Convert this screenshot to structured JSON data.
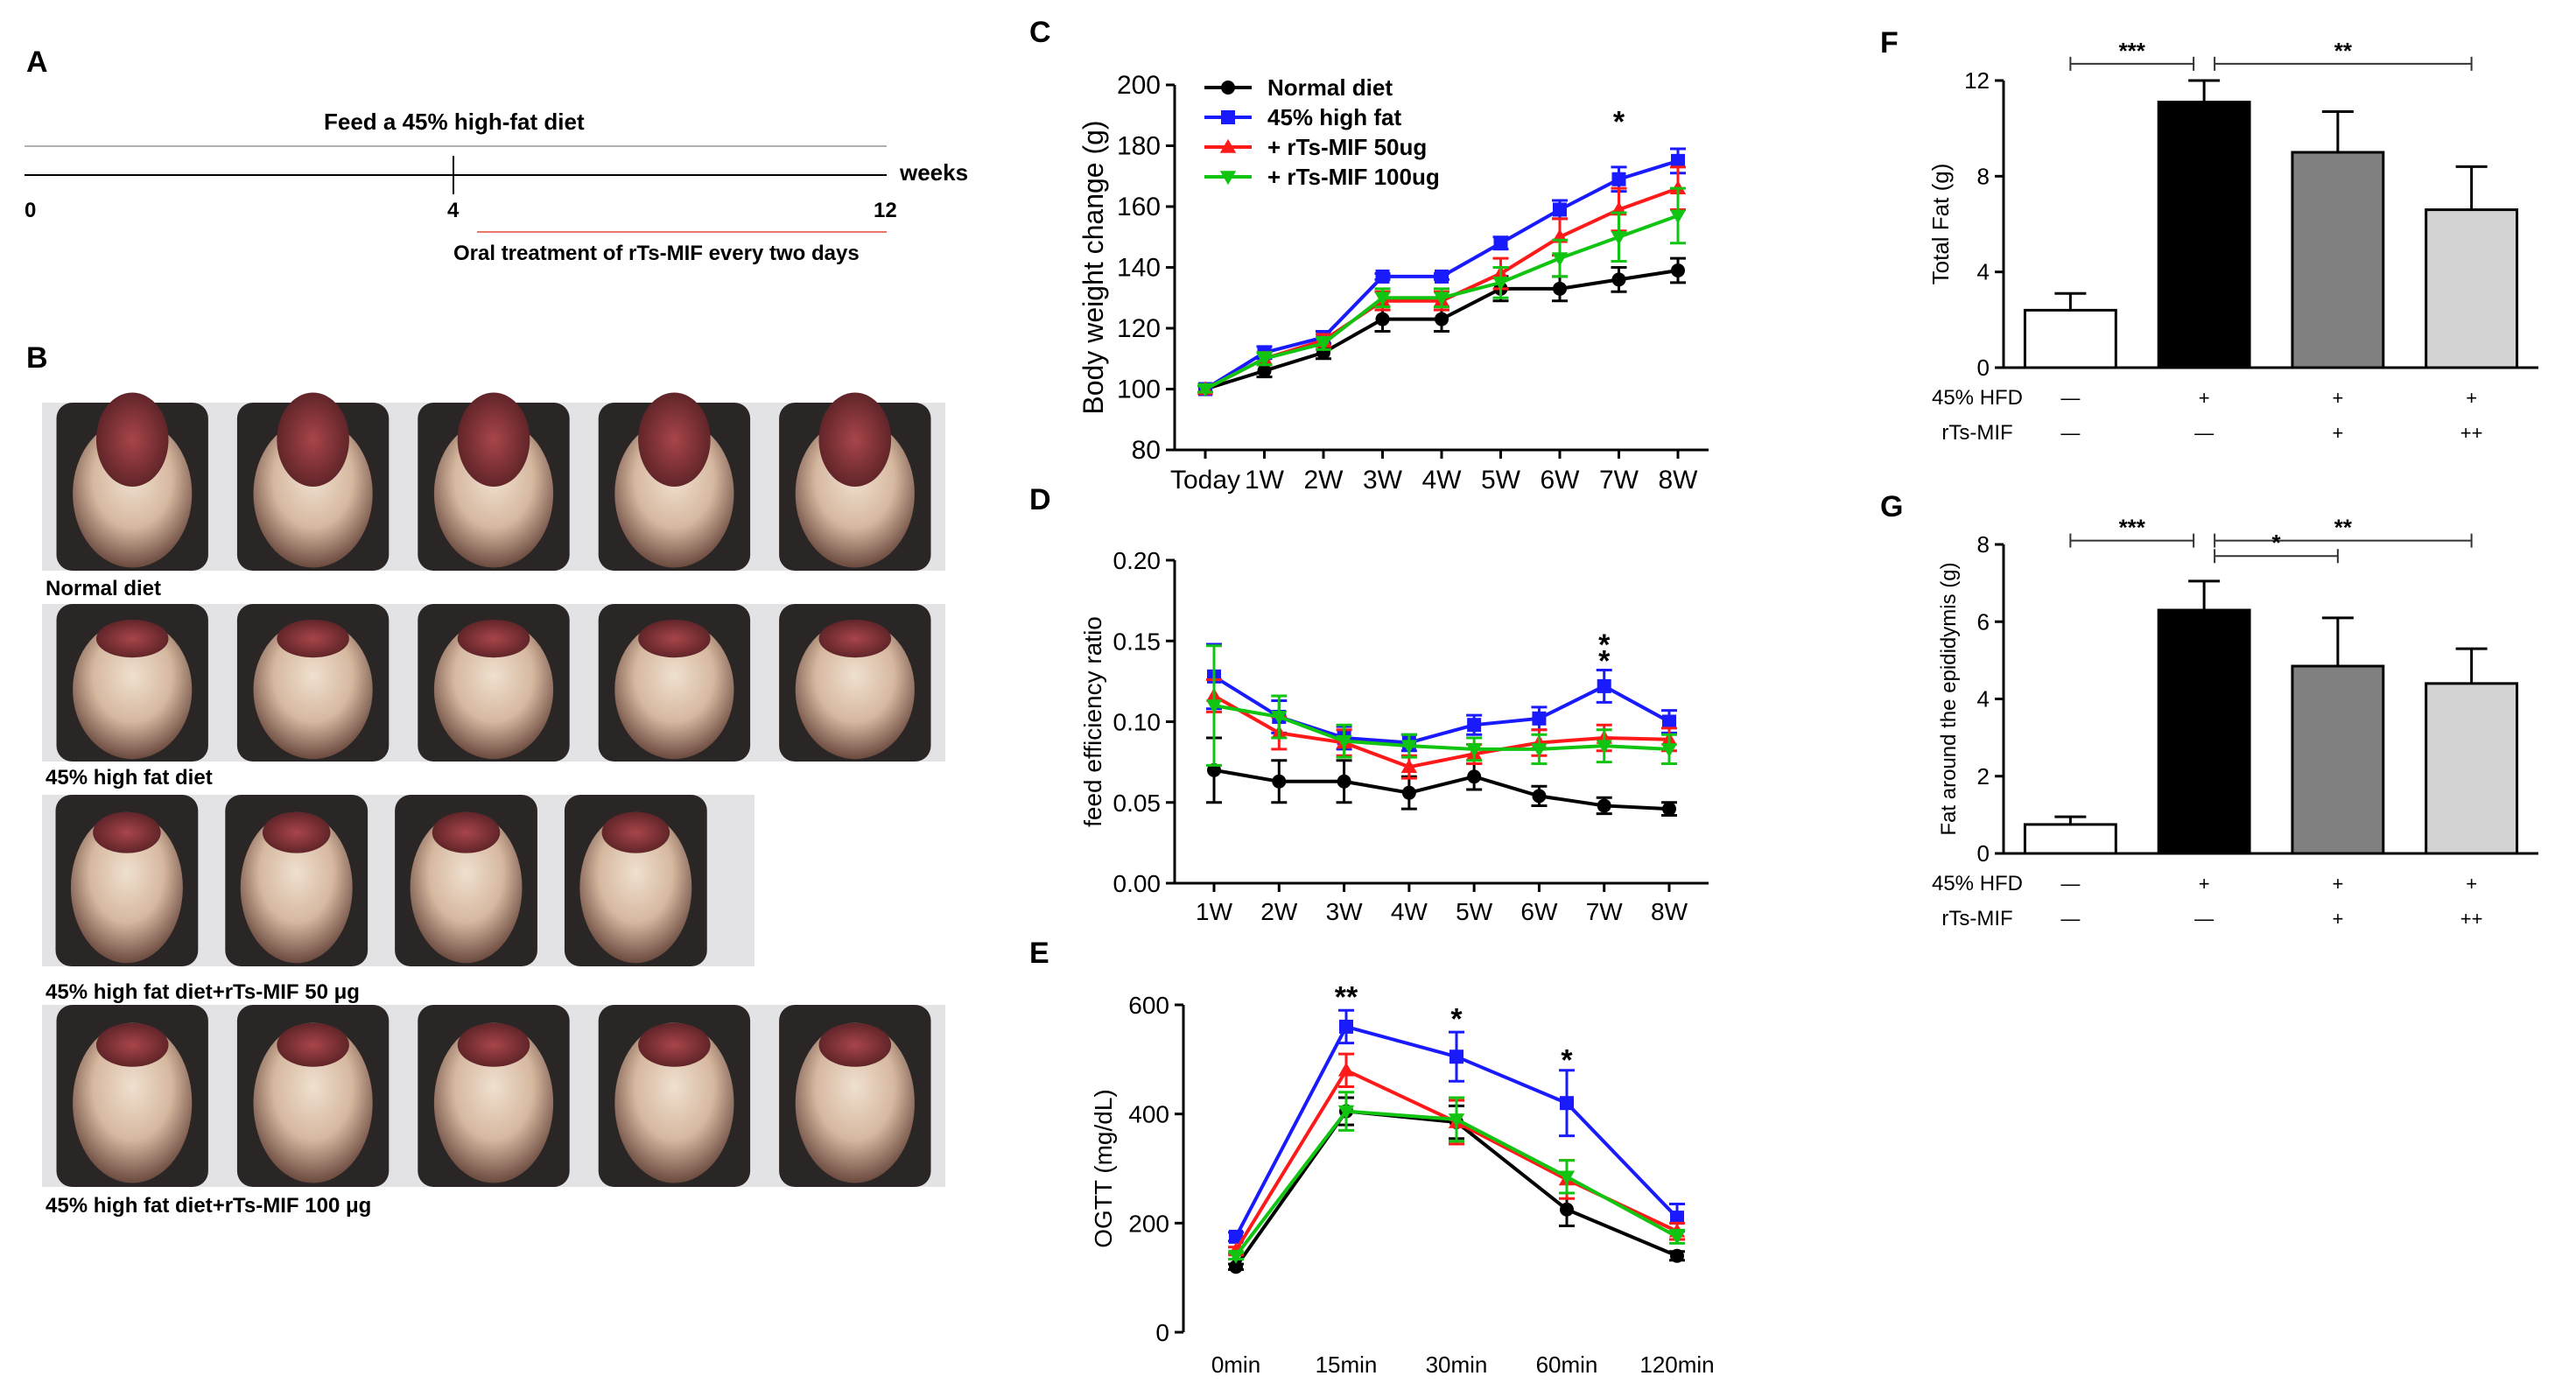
{
  "panel_labels": {
    "A": "A",
    "B": "B",
    "C": "C",
    "D": "D",
    "E": "E",
    "F": "F",
    "G": "G"
  },
  "timeline": {
    "diet_label": "Feed a 45% high-fat diet",
    "weeks_label": "weeks",
    "ticks": [
      "0",
      "4",
      "12"
    ],
    "treatment_label": "Oral treatment of rTs-MIF every two days",
    "treatment_color": "#e8766a"
  },
  "photos": {
    "rows": [
      {
        "caption": "Normal diet",
        "mice": 5
      },
      {
        "caption": "45% high fat diet",
        "mice": 5
      },
      {
        "caption": "45% high fat diet+rTs-MIF 50 μg",
        "mice": 4
      },
      {
        "caption": "45% high fat diet+rTs-MIF 100 μg",
        "mice": 5
      }
    ]
  },
  "series_style": [
    {
      "name": "Normal diet",
      "color": "#000000",
      "marker": "circle"
    },
    {
      "name": "45% high fat",
      "color": "#1a1aff",
      "marker": "square"
    },
    {
      "name": "+ rTs-MIF 50ug",
      "color": "#ff1a1a",
      "marker": "triangle-up"
    },
    {
      "name": "+ rTs-MIF 100ug",
      "color": "#11c411",
      "marker": "triangle-down"
    }
  ],
  "chart_data": [
    {
      "id": "C",
      "type": "line",
      "ylabel": "Body weight change (g)",
      "categories": [
        "Today",
        "1W",
        "2W",
        "3W",
        "4W",
        "5W",
        "6W",
        "7W",
        "8W"
      ],
      "ylim": [
        80,
        200
      ],
      "yticks": [
        80,
        100,
        120,
        140,
        160,
        180,
        200
      ],
      "series": [
        {
          "name": "Normal diet",
          "values": [
            100,
            106,
            112,
            123,
            123,
            133,
            133,
            136,
            139
          ],
          "errors": [
            1,
            2,
            2,
            4,
            4,
            4,
            4,
            4,
            4
          ]
        },
        {
          "name": "45% high fat",
          "values": [
            100,
            112,
            117,
            137,
            137,
            148,
            159,
            169,
            175
          ],
          "errors": [
            1,
            2,
            2,
            1,
            1,
            2,
            3,
            4,
            4
          ]
        },
        {
          "name": "+ rTs-MIF 50ug",
          "values": [
            100,
            110,
            116,
            129,
            129,
            138,
            150,
            159,
            166
          ],
          "errors": [
            1,
            2,
            2,
            3,
            3,
            5,
            6,
            7,
            7
          ]
        },
        {
          "name": "+ rTs-MIF 100ug",
          "values": [
            100,
            110,
            115,
            130,
            130,
            135,
            143,
            150,
            157
          ],
          "errors": [
            1,
            2,
            2,
            3,
            3,
            5,
            6,
            8,
            9
          ]
        }
      ],
      "annotations": [
        {
          "category": "7W",
          "text": "*",
          "color": "#11c411",
          "y": 188
        }
      ]
    },
    {
      "id": "D",
      "type": "line",
      "ylabel": "feed efficiency ratio",
      "categories": [
        "1W",
        "2W",
        "3W",
        "4W",
        "5W",
        "6W",
        "7W",
        "8W"
      ],
      "ylim": [
        0,
        0.2
      ],
      "yticks": [
        "0.00",
        "0.05",
        "0.10",
        "0.15",
        "0.20"
      ],
      "series": [
        {
          "name": "Normal diet",
          "values": [
            0.07,
            0.063,
            0.063,
            0.056,
            0.066,
            0.054,
            0.048,
            0.046
          ],
          "errors": [
            0.02,
            0.013,
            0.013,
            0.01,
            0.008,
            0.006,
            0.005,
            0.004
          ]
        },
        {
          "name": "45% high fat",
          "values": [
            0.128,
            0.103,
            0.09,
            0.087,
            0.098,
            0.102,
            0.122,
            0.1
          ],
          "errors": [
            0.02,
            0.01,
            0.007,
            0.005,
            0.006,
            0.007,
            0.01,
            0.007
          ]
        },
        {
          "name": "+ rTs-MIF 50ug",
          "values": [
            0.116,
            0.093,
            0.087,
            0.072,
            0.08,
            0.087,
            0.09,
            0.089
          ],
          "errors": [
            0.01,
            0.01,
            0.008,
            0.007,
            0.006,
            0.008,
            0.008,
            0.007
          ]
        },
        {
          "name": "+ rTs-MIF 100ug",
          "values": [
            0.11,
            0.103,
            0.088,
            0.085,
            0.083,
            0.083,
            0.085,
            0.083
          ],
          "errors": [
            0.037,
            0.013,
            0.01,
            0.007,
            0.007,
            0.009,
            0.01,
            0.009
          ]
        }
      ],
      "annotations": [
        {
          "category": "7W",
          "text": "*",
          "color": "#ff1a1a",
          "y": 0.148
        },
        {
          "category": "7W",
          "text": "*",
          "color": "#11c411",
          "y": 0.138
        }
      ]
    },
    {
      "id": "E",
      "type": "line",
      "ylabel": "OGTT (mg/dL)",
      "categories": [
        "0min",
        "15min",
        "30min",
        "60min",
        "120min"
      ],
      "ylim": [
        0,
        600
      ],
      "yticks": [
        0,
        200,
        400,
        600
      ],
      "series": [
        {
          "name": "Normal diet",
          "values": [
            120,
            405,
            385,
            225,
            140
          ],
          "errors": [
            5,
            25,
            30,
            30,
            8
          ]
        },
        {
          "name": "45% high fat",
          "values": [
            175,
            560,
            505,
            420,
            210
          ],
          "errors": [
            8,
            30,
            45,
            60,
            25
          ]
        },
        {
          "name": "+ rTs-MIF 50ug",
          "values": [
            150,
            480,
            385,
            280,
            185
          ],
          "errors": [
            6,
            30,
            40,
            35,
            15
          ]
        },
        {
          "name": "+ rTs-MIF 100ug",
          "values": [
            140,
            405,
            390,
            285,
            175
          ],
          "errors": [
            6,
            35,
            40,
            30,
            12
          ]
        }
      ],
      "annotations": [
        {
          "category": "15min",
          "text": "**",
          "color": "#11c411",
          "y": 615
        },
        {
          "category": "30min",
          "text": "*",
          "color": "#ff1a1a",
          "y": 575
        },
        {
          "category": "60min",
          "text": "*",
          "color": "#ff1a1a",
          "y": 500
        }
      ]
    },
    {
      "id": "F",
      "type": "bar",
      "ylabel": "Total Fat (g)",
      "ylim": [
        0,
        12
      ],
      "yticks": [
        0,
        4,
        8,
        12
      ],
      "values": [
        2.4,
        11.1,
        9.0,
        6.6
      ],
      "errors": [
        0.7,
        0.9,
        1.7,
        1.8
      ],
      "colors": [
        "#ffffff",
        "#000000",
        "#808080",
        "#d3d3d3"
      ],
      "row1_label": "45% HFD",
      "row1": [
        "—",
        "+",
        "+",
        "+"
      ],
      "row2_label": "rTs-MIF",
      "row2": [
        "—",
        "—",
        "+",
        "++"
      ],
      "significance": [
        {
          "from": 0,
          "to": 1,
          "text": "***",
          "y": 12.7
        },
        {
          "from": 1,
          "to": 3,
          "text": "**",
          "y": 12.7
        }
      ]
    },
    {
      "id": "G",
      "type": "bar",
      "ylabel": "Fat around the epididymis (g)",
      "ylim": [
        0,
        8
      ],
      "yticks": [
        0,
        2,
        4,
        6,
        8
      ],
      "values": [
        0.75,
        6.3,
        4.85,
        4.4
      ],
      "errors": [
        0.2,
        0.75,
        1.25,
        0.9
      ],
      "colors": [
        "#ffffff",
        "#000000",
        "#808080",
        "#d3d3d3"
      ],
      "row1_label": "45% HFD",
      "row1": [
        "—",
        "+",
        "+",
        "+"
      ],
      "row2_label": "rTs-MIF",
      "row2": [
        "—",
        "—",
        "+",
        "++"
      ],
      "significance": [
        {
          "from": 0,
          "to": 1,
          "text": "***",
          "y": 8.1
        },
        {
          "from": 1,
          "to": 3,
          "text": "**",
          "y": 8.1
        },
        {
          "from": 1,
          "to": 2,
          "text": "*",
          "y": 7.7
        }
      ]
    }
  ]
}
